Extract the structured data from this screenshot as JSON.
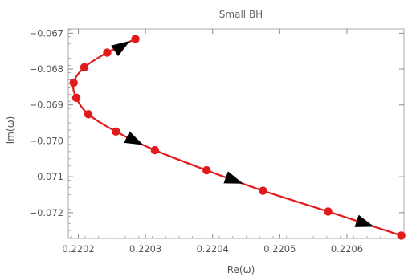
{
  "chart_data": {
    "type": "line",
    "title": "Small BH",
    "xlabel": "Re(ω)",
    "ylabel": "Im(ω)",
    "xlim": [
      0.220185,
      0.220685
    ],
    "ylim": [
      -0.07272,
      -0.06688
    ],
    "x_ticks": [
      0.2202,
      0.2203,
      0.2204,
      0.2205,
      0.2206
    ],
    "x_tick_labels": [
      "0.2202",
      "0.2203",
      "0.2204",
      "0.2205",
      "0.2206"
    ],
    "y_ticks": [
      -0.067,
      -0.068,
      -0.069,
      -0.07,
      -0.071,
      -0.072
    ],
    "y_tick_labels": [
      "−0.067",
      "−0.068",
      "−0.069",
      "−0.070",
      "−0.071",
      "−0.072"
    ],
    "grid": false,
    "colors": {
      "line": "#e31a1c",
      "points": "#e31a1c",
      "arrows": "#000000",
      "frame": "#aaaaaa"
    },
    "series": [
      {
        "points": [
          {
            "x": 0.220285,
            "y": -0.06716
          },
          {
            "x": 0.220243,
            "y": -0.06754
          },
          {
            "x": 0.220209,
            "y": -0.06795
          },
          {
            "x": 0.220193,
            "y": -0.06838
          },
          {
            "x": 0.220197,
            "y": -0.0688
          },
          {
            "x": 0.220215,
            "y": -0.06926
          },
          {
            "x": 0.220256,
            "y": -0.06974
          },
          {
            "x": 0.220314,
            "y": -0.07026
          },
          {
            "x": 0.220391,
            "y": -0.07082
          },
          {
            "x": 0.220475,
            "y": -0.07139
          },
          {
            "x": 0.220572,
            "y": -0.07197
          },
          {
            "x": 0.220681,
            "y": -0.07264
          }
        ]
      }
    ],
    "arrows": [
      {
        "x": 0.220265,
        "y": -0.06736,
        "toward": "up-right"
      },
      {
        "x": 0.220284,
        "y": -0.07,
        "toward": "down-right"
      },
      {
        "x": 0.220432,
        "y": -0.0711,
        "toward": "down-right"
      },
      {
        "x": 0.220627,
        "y": -0.07231,
        "toward": "down-right"
      }
    ]
  }
}
